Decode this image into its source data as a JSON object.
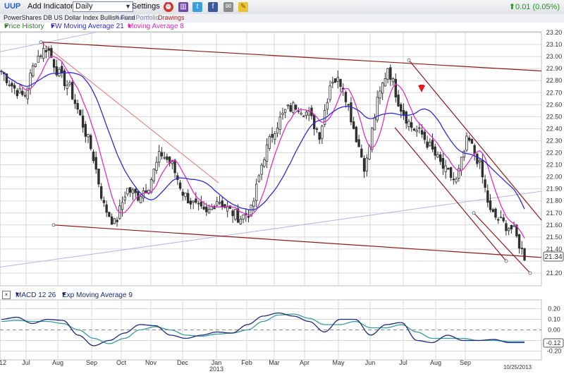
{
  "toolbar": {
    "symbol": "UUP",
    "add_indicator": "Add Indicator",
    "period": "Daily",
    "settings": "Settings",
    "price_change": "0.01 (0.05%)"
  },
  "subbar": {
    "fund_name": "PowerShares DB US Dollar Index Bullish Fund",
    "add_to_portfolio": "Add to Portfolio",
    "drawings": "Drawings"
  },
  "legend": {
    "price_history": "Price History",
    "fw_ma": "FW Moving Average 21",
    "ma8": "Moving Average 8"
  },
  "macd_legend": {
    "macd": "MACD 12 26",
    "ema": "Exp Moving Average 9"
  },
  "colors": {
    "candle": "#2f2f2f",
    "ma21": "#2b2bd6",
    "ma8": "#e030c8",
    "trend_dark": "#8b1a1a",
    "trend_light": "#e48a82",
    "trend_purple": "#b6b2ea",
    "macd_line": "#1c2a78",
    "signal_line": "#3a9aa0",
    "arrow": "#e01818",
    "grid": "#d8d8d8"
  },
  "chart_data": [
    {
      "type": "candlestick",
      "title": "",
      "x_labels": [
        "12",
        "Jul",
        "Aug",
        "Sep",
        "Oct",
        "Nov",
        "Dec",
        "Jan",
        "Feb",
        "Mar",
        "Apr",
        "May",
        "Jun",
        "Jul",
        "Aug",
        "Sep"
      ],
      "year_label": "2013",
      "y_ticks": [
        21.2,
        21.3,
        21.4,
        21.5,
        21.6,
        21.7,
        21.8,
        21.9,
        22.0,
        22.1,
        22.2,
        22.3,
        22.4,
        22.5,
        22.6,
        22.7,
        22.8,
        22.9,
        23.0,
        23.1,
        23.2
      ],
      "ylim": [
        21.18,
        23.24
      ],
      "last_price": 21.34,
      "last_price_label": "21.34",
      "date_label": "10/25/2013",
      "price_path": [
        [
          "Jun",
          22.88
        ],
        [
          "Jun",
          22.75
        ],
        [
          "Jul",
          22.66
        ],
        [
          "Jul",
          22.98
        ],
        [
          "Jul",
          23.08
        ],
        [
          "Aug",
          22.86
        ],
        [
          "Aug",
          22.74
        ],
        [
          "Aug",
          22.48
        ],
        [
          "Sep",
          22.2
        ],
        [
          "Sep",
          21.76
        ],
        [
          "Sep",
          21.6
        ],
        [
          "Oct",
          21.9
        ],
        [
          "Oct",
          21.84
        ],
        [
          "Oct",
          21.94
        ],
        [
          "Nov",
          22.2
        ],
        [
          "Nov",
          22.1
        ],
        [
          "Dec",
          21.86
        ],
        [
          "Dec",
          21.76
        ],
        [
          "Jan",
          21.68
        ],
        [
          "Jan",
          21.82
        ],
        [
          "Jan",
          21.72
        ],
        [
          "Feb",
          21.66
        ],
        [
          "Feb",
          21.72
        ],
        [
          "Mar",
          22.15
        ],
        [
          "Mar",
          22.4
        ],
        [
          "Apr",
          22.55
        ],
        [
          "Apr",
          22.6
        ],
        [
          "Apr",
          22.52
        ],
        [
          "May",
          22.35
        ],
        [
          "May",
          22.82
        ],
        [
          "May",
          22.78
        ],
        [
          "Jun",
          22.4
        ],
        [
          "Jun",
          22.06
        ],
        [
          "Jun",
          22.6
        ],
        [
          "Jul",
          22.92
        ],
        [
          "Jul",
          22.6
        ],
        [
          "Jul",
          22.42
        ],
        [
          "Aug",
          22.35
        ],
        [
          "Aug",
          22.2
        ],
        [
          "Aug",
          22.05
        ],
        [
          "Sep",
          21.96
        ],
        [
          "Sep",
          22.32
        ],
        [
          "Sep",
          22.12
        ],
        [
          "Sep",
          21.7
        ],
        [
          "Oct",
          21.62
        ],
        [
          "Oct",
          21.56
        ],
        [
          "Oct",
          21.34
        ]
      ]
    },
    {
      "type": "line",
      "title": "",
      "y_ticks": [
        -0.2,
        -0.1,
        0.0,
        0.1,
        0.2
      ],
      "y_tick_labels": [
        "-0.20",
        "-0.10",
        "0.00",
        "0.10",
        "0.20"
      ],
      "ylim": [
        -0.25,
        0.25
      ],
      "last_value_label": "-0.12",
      "macd": [
        0.1,
        0.12,
        0.06,
        0.1,
        0.09,
        -0.05,
        -0.15,
        -0.1,
        -0.03,
        0.05,
        0.04,
        -0.05,
        -0.08,
        -0.05,
        -0.02,
        -0.03,
        0.05,
        0.13,
        0.16,
        0.13,
        0.08,
        -0.02,
        0.1,
        0.1,
        -0.05,
        0.05,
        0.07,
        -0.1,
        -0.12,
        -0.05,
        -0.1,
        -0.1,
        -0.09,
        -0.12,
        -0.12
      ],
      "signal": [
        0.08,
        0.09,
        0.08,
        0.08,
        0.06,
        0.0,
        -0.08,
        -0.13,
        -0.08,
        0.0,
        0.03,
        0.0,
        -0.05,
        -0.06,
        -0.04,
        -0.03,
        0.0,
        0.08,
        0.14,
        0.15,
        0.11,
        0.05,
        0.05,
        0.08,
        0.02,
        0.02,
        0.05,
        -0.02,
        -0.08,
        -0.08,
        -0.08,
        -0.1,
        -0.1,
        -0.11,
        -0.11
      ]
    }
  ]
}
